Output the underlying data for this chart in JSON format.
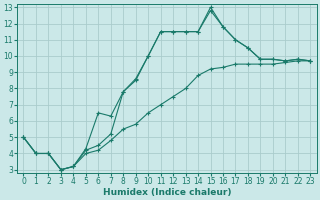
{
  "xlabel": "Humidex (Indice chaleur)",
  "bg_color": "#cbe8e8",
  "grid_color": "#aacccc",
  "line_color": "#1a7a6a",
  "marker": "+",
  "xlim": [
    -0.5,
    23.5
  ],
  "ylim": [
    2.8,
    13.2
  ],
  "xticks": [
    0,
    1,
    2,
    3,
    4,
    5,
    6,
    7,
    8,
    9,
    10,
    11,
    12,
    13,
    14,
    15,
    16,
    17,
    18,
    19,
    20,
    21,
    22,
    23
  ],
  "yticks": [
    3,
    4,
    5,
    6,
    7,
    8,
    9,
    10,
    11,
    12,
    13
  ],
  "line1_x": [
    0,
    1,
    2,
    3,
    4,
    5,
    6,
    7,
    8,
    9,
    10,
    11,
    12,
    13,
    14,
    15,
    16,
    17,
    18,
    19,
    20,
    21,
    22,
    23
  ],
  "line1_y": [
    5.0,
    4.0,
    4.0,
    3.0,
    3.2,
    4.0,
    4.2,
    4.8,
    5.5,
    5.8,
    6.5,
    7.0,
    7.5,
    8.0,
    8.8,
    9.2,
    9.3,
    9.5,
    9.5,
    9.5,
    9.5,
    9.6,
    9.7,
    9.7
  ],
  "line2_x": [
    0,
    1,
    2,
    3,
    4,
    5,
    6,
    7,
    8,
    9,
    10,
    11,
    12,
    13,
    14,
    15,
    16,
    17,
    18,
    19,
    20,
    21,
    22,
    23
  ],
  "line2_y": [
    5.0,
    4.0,
    4.0,
    3.0,
    3.2,
    4.2,
    4.5,
    5.2,
    7.8,
    8.5,
    10.0,
    11.5,
    11.5,
    11.5,
    11.5,
    12.8,
    11.8,
    11.0,
    10.5,
    9.8,
    9.8,
    9.7,
    9.8,
    9.7
  ],
  "line3_x": [
    0,
    1,
    2,
    3,
    4,
    5,
    6,
    7,
    8,
    9,
    10,
    11,
    12,
    13,
    14,
    15,
    16,
    17,
    18,
    19,
    20,
    21,
    22,
    23
  ],
  "line3_y": [
    5.0,
    4.0,
    4.0,
    3.0,
    3.2,
    4.3,
    6.5,
    6.3,
    7.8,
    8.6,
    10.0,
    11.5,
    11.5,
    11.5,
    11.5,
    13.0,
    11.8,
    11.0,
    10.5,
    9.8,
    9.8,
    9.7,
    9.8,
    9.7
  ]
}
